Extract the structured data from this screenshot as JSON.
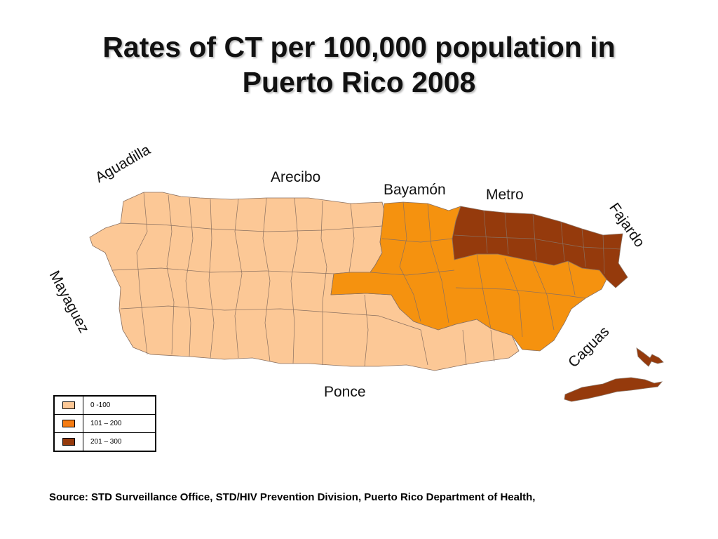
{
  "title": {
    "line1": "Rates of CT per 100,000 population in",
    "line2": "Puerto Rico 2008"
  },
  "regions": {
    "aguadilla": "Aguadilla",
    "arecibo": "Arecibo",
    "bayamon": "Bayamón",
    "metro": "Metro",
    "fajardo": "Fajardo",
    "mayaguez": "Mayaguez",
    "caguas": "Caguas",
    "ponce": "Ponce"
  },
  "region_rate_class": {
    "Aguadilla": "0 -100",
    "Mayaguez": "0 -100",
    "Arecibo": "0 -100",
    "Ponce": "0 -100",
    "Bayamón": "101 – 200",
    "Caguas": "101 – 200",
    "Metro": "201 – 300",
    "Fajardo": "201 – 300"
  },
  "legend": [
    {
      "label": "0 -100",
      "color": "#fcc896"
    },
    {
      "label": "101 – 200",
      "color": "#f57c13"
    },
    {
      "label": "201 – 300",
      "color": "#953a0c"
    }
  ],
  "colors": {
    "low": "#fcc896",
    "mid": "#f5920f",
    "high": "#953a0c",
    "border": "#8a7060"
  },
  "source": "Source: STD Surveillance Office, STD/HIV Prevention Division, Puerto Rico Department of Health,"
}
